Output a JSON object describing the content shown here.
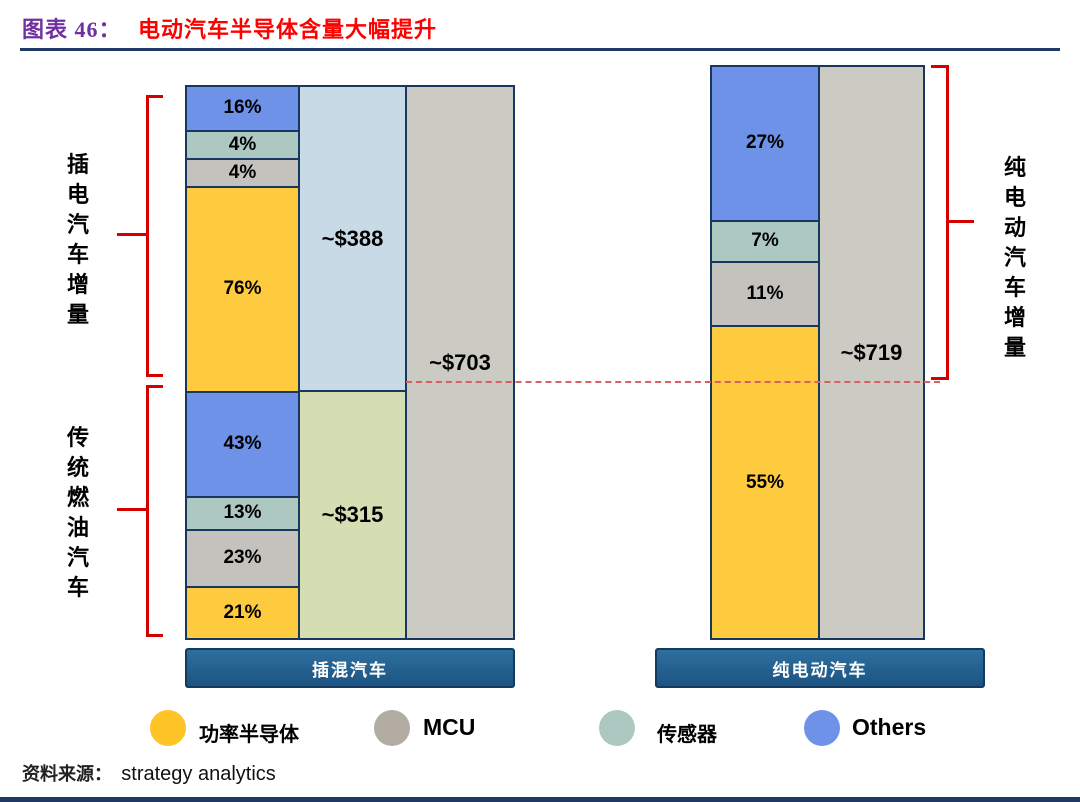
{
  "header": {
    "figure_no": "图表 46：",
    "title": "电动汽车半导体含量大幅提升"
  },
  "annotations": {
    "left_top_bracket": "插电汽车增量",
    "left_bottom_bracket": "传统燃油汽车",
    "right_bracket": "纯电动汽车增量"
  },
  "chart_data": {
    "type": "bar",
    "subtype": "stacked-percentage-comparison",
    "title": "电动汽车半导体含量大幅提升",
    "legend": [
      {
        "name": "功率半导体",
        "color": "#ffc425"
      },
      {
        "name": "MCU",
        "color": "#b3aca3"
      },
      {
        "name": "传感器",
        "color": "#acc8c1"
      },
      {
        "name": "Others",
        "color": "#6d92e8"
      }
    ],
    "colors": {
      "increment_value_cell": "#c9dae7",
      "base_value_cell": "#d5ddb3",
      "total_column": "#cbcac3",
      "category_bar": "#1c5482",
      "box_border": "#17375e",
      "bracket_red": "#d40000"
    },
    "bars": [
      {
        "category": "插混汽车",
        "total": 703,
        "total_label": "~$703",
        "sections": [
          {
            "name": "插电汽车增量",
            "value": 388,
            "value_label": "~$388",
            "segments": [
              {
                "series": "Others",
                "pct": 16,
                "label": "16%"
              },
              {
                "series": "传感器",
                "pct": 4,
                "label": "4%"
              },
              {
                "series": "MCU",
                "pct": 4,
                "label": "4%"
              },
              {
                "series": "功率半导体",
                "pct": 76,
                "label": "76%"
              }
            ]
          },
          {
            "name": "传统燃油汽车",
            "value": 315,
            "value_label": "~$315",
            "segments": [
              {
                "series": "Others",
                "pct": 43,
                "label": "43%"
              },
              {
                "series": "传感器",
                "pct": 13,
                "label": "13%"
              },
              {
                "series": "MCU",
                "pct": 23,
                "label": "23%"
              },
              {
                "series": "功率半导体",
                "pct": 21,
                "label": "21%"
              }
            ]
          }
        ]
      },
      {
        "category": "纯电动汽车",
        "total": 719,
        "total_label": "~$719",
        "sections": [
          {
            "name": "纯电动汽车增量",
            "value": 719,
            "segments": [
              {
                "series": "Others",
                "pct": 27,
                "label": "27%"
              },
              {
                "series": "传感器",
                "pct": 7,
                "label": "7%"
              },
              {
                "series": "MCU",
                "pct": 11,
                "label": "11%"
              },
              {
                "series": "功率半导体",
                "pct": 55,
                "label": "55%"
              }
            ]
          }
        ]
      }
    ]
  },
  "source": {
    "prefix": "资料来源：",
    "text": "strategy analytics"
  }
}
